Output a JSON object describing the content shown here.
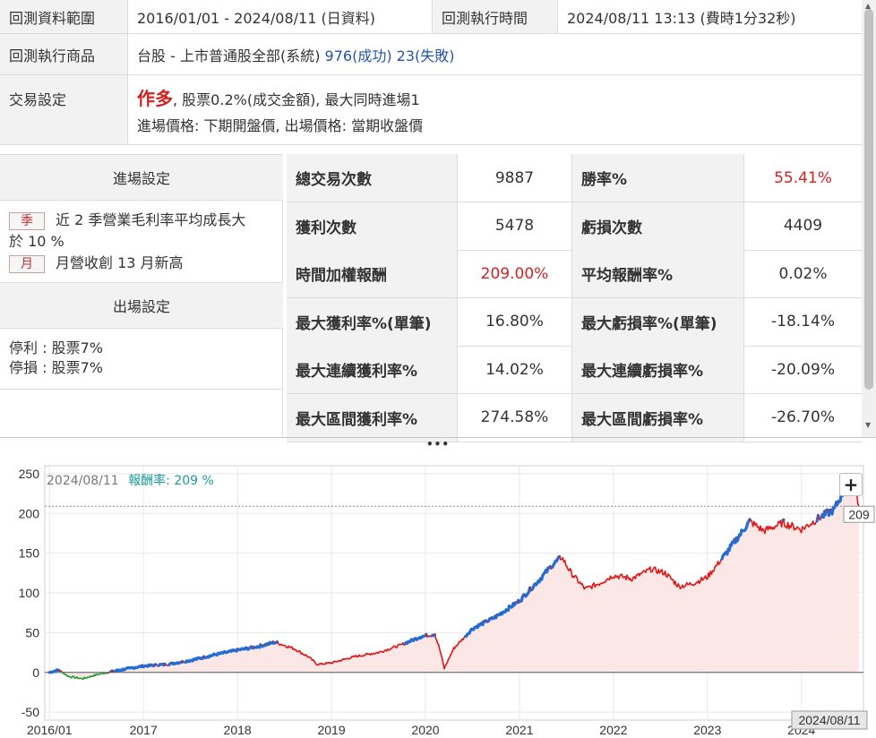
{
  "info": {
    "range_label": "回測資料範圍",
    "range_value": "2016/01/01 - 2024/08/11 (日資料)",
    "exec_time_label": "回測執行時間",
    "exec_time_value": "2024/08/11 13:13 (費時1分32秒)",
    "product_label": "回測執行商品",
    "product_value": "台股 - 上市普通股全部(系統)",
    "success": "976(成功)",
    "fail": "23(失敗)",
    "trade_label": "交易設定",
    "trade_side": "作多",
    "trade_detail": ", 股票0.2%(成交金額), 最大同時進場1",
    "trade_prices": "進場價格: 下期開盤價, 出場價格: 當期收盤價"
  },
  "settings": {
    "entry_title": "進場設定",
    "conditions": [
      {
        "tag": "季",
        "text": "近 2 季營業毛利率平均成長大",
        "text2": "於 10 %"
      },
      {
        "tag": "月",
        "text": "月營收創 13 月新高"
      }
    ],
    "exit_title": "出場設定",
    "exit_lines": [
      "停利 : 股票7%",
      "停損 : 股票7%"
    ]
  },
  "stats": [
    {
      "k1": "總交易次數",
      "v1": "9887",
      "k2": "勝率%",
      "v2": "55.41%",
      "v2red": true
    },
    {
      "k1": "獲利次數",
      "v1": "5478",
      "k2": "虧損次數",
      "v2": "4409"
    },
    {
      "k1": "時間加權報酬",
      "v1": "209.00%",
      "v1red": true,
      "k2": "平均報酬率%",
      "v2": "0.02%"
    },
    {
      "k1": "最大獲利率%(單筆)",
      "v1": "16.80%",
      "k2": "最大虧損率%(單筆)",
      "v2": "-18.14%"
    },
    {
      "k1": "最大連續獲利率%",
      "v1": "14.02%",
      "k2": "最大連續虧損率%",
      "v2": "-20.09%"
    },
    {
      "k1": "最大區間獲利率%",
      "v1": "274.58%",
      "k2": "最大區間虧損率%",
      "v2": "-26.70%"
    }
  ],
  "chart_header": {
    "date": "2024/08/11",
    "label": "報酬率: 209 %"
  },
  "chart_data": {
    "type": "area",
    "x_ticks": [
      "2016/01",
      "2017",
      "2018",
      "2019",
      "2020",
      "2021",
      "2022",
      "2023",
      "2024"
    ],
    "y_ticks": [
      250,
      200,
      150,
      100,
      50,
      0,
      -50
    ],
    "ylim": [
      -60,
      260
    ],
    "last_value": 209,
    "last_value_label": "209",
    "end_date_label": "2024/08/11",
    "series_points": [
      [
        2016.0,
        0
      ],
      [
        2016.1,
        3
      ],
      [
        2016.2,
        -5
      ],
      [
        2016.35,
        -8
      ],
      [
        2016.5,
        -3
      ],
      [
        2016.7,
        2
      ],
      [
        2017.0,
        8
      ],
      [
        2017.25,
        10
      ],
      [
        2017.5,
        15
      ],
      [
        2017.75,
        22
      ],
      [
        2018.0,
        28
      ],
      [
        2018.2,
        32
      ],
      [
        2018.4,
        38
      ],
      [
        2018.6,
        30
      ],
      [
        2018.75,
        20
      ],
      [
        2018.85,
        10
      ],
      [
        2019.0,
        12
      ],
      [
        2019.25,
        20
      ],
      [
        2019.5,
        25
      ],
      [
        2019.75,
        35
      ],
      [
        2019.95,
        45
      ],
      [
        2020.1,
        48
      ],
      [
        2020.15,
        30
      ],
      [
        2020.2,
        5
      ],
      [
        2020.3,
        30
      ],
      [
        2020.5,
        55
      ],
      [
        2020.75,
        70
      ],
      [
        2021.0,
        90
      ],
      [
        2021.2,
        115
      ],
      [
        2021.35,
        135
      ],
      [
        2021.45,
        145
      ],
      [
        2021.55,
        125
      ],
      [
        2021.7,
        105
      ],
      [
        2021.85,
        112
      ],
      [
        2022.0,
        122
      ],
      [
        2022.2,
        118
      ],
      [
        2022.4,
        130
      ],
      [
        2022.55,
        125
      ],
      [
        2022.7,
        108
      ],
      [
        2022.85,
        112
      ],
      [
        2023.0,
        120
      ],
      [
        2023.2,
        150
      ],
      [
        2023.45,
        190
      ],
      [
        2023.6,
        178
      ],
      [
        2023.8,
        188
      ],
      [
        2024.0,
        180
      ],
      [
        2024.2,
        195
      ],
      [
        2024.35,
        205
      ],
      [
        2024.5,
        240
      ],
      [
        2024.58,
        230
      ],
      [
        2024.61,
        209
      ]
    ]
  },
  "colors": {
    "up": "#1f6fd6",
    "down": "#e01818",
    "green": "#2a9a3a",
    "fill": "#fbe8e6"
  }
}
